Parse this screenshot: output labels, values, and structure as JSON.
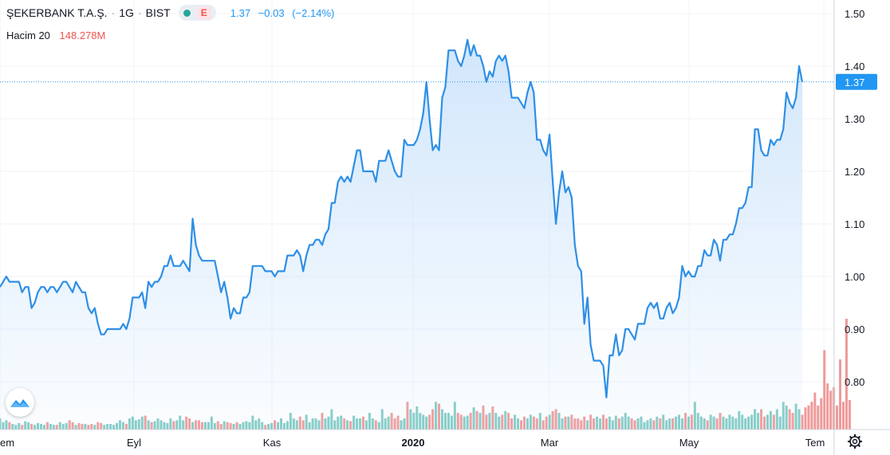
{
  "header": {
    "symbol": "ŞEKERBANK T.A.Ş.",
    "interval": "1G",
    "exchange": "BIST",
    "status_badge": "E",
    "last": "1.37",
    "change": "−0.03",
    "change_pct": "(−2.14%)"
  },
  "volume_legend": {
    "label": "Hacim 20",
    "value": "148.278M"
  },
  "colors": {
    "line": "#2e8fe6",
    "fill": "#cfe5fb",
    "vol_up": "#80cbc4",
    "vol_down": "#ef9a9a",
    "last_price": "#2196f3",
    "grid": "#f0f3fa",
    "text": "#131722"
  },
  "icons": {
    "logo": "tradingview-logo-icon",
    "settings": "gear-icon"
  },
  "chart_data": {
    "type": "line",
    "title": "ŞEKERBANK T.A.Ş. · 1G · BIST",
    "y_axis": {
      "ticks": [
        "1.50",
        "1.40",
        "1.30",
        "1.20",
        "1.10",
        "1.00",
        "0.90",
        "0.80"
      ],
      "ylim": [
        0.72,
        1.52
      ]
    },
    "x_axis": {
      "labels": [
        "em",
        "Eyl",
        "Kas",
        "2020",
        "Mar",
        "May",
        "Tem"
      ]
    },
    "last_price_label": "1.37",
    "last_price": 1.37,
    "grid": true,
    "series": [
      {
        "values": [
          0.98,
          0.99,
          1.0,
          0.99,
          0.99,
          0.99,
          0.99,
          0.97,
          0.98,
          0.98,
          0.94,
          0.95,
          0.97,
          0.98,
          0.98,
          0.97,
          0.98,
          0.98,
          0.97,
          0.98,
          0.99,
          0.99,
          0.98,
          0.97,
          0.99,
          0.98,
          0.97,
          0.97,
          0.94,
          0.93,
          0.94,
          0.91,
          0.89,
          0.89,
          0.9,
          0.9,
          0.9,
          0.9,
          0.9,
          0.91,
          0.9,
          0.92,
          0.96,
          0.96,
          0.96,
          0.97,
          0.94,
          0.99,
          0.98,
          0.99,
          0.99,
          1.0,
          1.02,
          1.02,
          1.04,
          1.02,
          1.02,
          1.02,
          1.03,
          1.02,
          1.01,
          1.11,
          1.06,
          1.04,
          1.03,
          1.03,
          1.03,
          1.03,
          1.03,
          1.0,
          0.97,
          0.99,
          0.96,
          0.92,
          0.94,
          0.93,
          0.93,
          0.96,
          0.96,
          0.97,
          1.02,
          1.02,
          1.02,
          1.02,
          1.01,
          1.01,
          1.01,
          1.0,
          1.01,
          1.01,
          1.01,
          1.04,
          1.04,
          1.04,
          1.05,
          1.04,
          1.01,
          1.04,
          1.06,
          1.06,
          1.07,
          1.07,
          1.06,
          1.08,
          1.09,
          1.14,
          1.14,
          1.18,
          1.19,
          1.18,
          1.19,
          1.18,
          1.21,
          1.24,
          1.24,
          1.2,
          1.2,
          1.2,
          1.2,
          1.18,
          1.22,
          1.22,
          1.22,
          1.24,
          1.22,
          1.2,
          1.19,
          1.19,
          1.26,
          1.25,
          1.25,
          1.25,
          1.26,
          1.28,
          1.31,
          1.37,
          1.3,
          1.24,
          1.25,
          1.24,
          1.34,
          1.36,
          1.43,
          1.43,
          1.43,
          1.41,
          1.4,
          1.42,
          1.45,
          1.42,
          1.44,
          1.42,
          1.42,
          1.4,
          1.37,
          1.39,
          1.38,
          1.41,
          1.42,
          1.41,
          1.42,
          1.39,
          1.34,
          1.34,
          1.34,
          1.33,
          1.32,
          1.35,
          1.37,
          1.35,
          1.26,
          1.26,
          1.24,
          1.23,
          1.27,
          1.18,
          1.1,
          1.16,
          1.2,
          1.16,
          1.17,
          1.15,
          1.06,
          1.02,
          1.01,
          0.91,
          0.96,
          0.87,
          0.84,
          0.84,
          0.84,
          0.83,
          0.77,
          0.85,
          0.85,
          0.89,
          0.85,
          0.86,
          0.9,
          0.9,
          0.89,
          0.88,
          0.91,
          0.91,
          0.91,
          0.94,
          0.95,
          0.94,
          0.95,
          0.92,
          0.92,
          0.94,
          0.95,
          0.93,
          0.94,
          0.96,
          1.02,
          1.0,
          1.01,
          1.0,
          1.0,
          1.02,
          1.02,
          1.05,
          1.04,
          1.04,
          1.07,
          1.06,
          1.03,
          1.07,
          1.07,
          1.08,
          1.08,
          1.1,
          1.13,
          1.13,
          1.14,
          1.17,
          1.17,
          1.28,
          1.28,
          1.24,
          1.23,
          1.23,
          1.26,
          1.25,
          1.26,
          1.26,
          1.28,
          1.35,
          1.33,
          1.32,
          1.34,
          1.4,
          1.37
        ]
      }
    ],
    "volume": {
      "values": [
        12,
        8,
        10,
        8,
        6,
        5,
        7,
        5,
        9,
        8,
        6,
        5,
        7,
        6,
        5,
        8,
        6,
        5,
        5,
        8,
        6,
        7,
        10,
        8,
        5,
        7,
        6,
        6,
        5,
        6,
        5,
        8,
        7,
        5,
        6,
        6,
        5,
        7,
        10,
        8,
        6,
        12,
        14,
        10,
        11,
        14,
        15,
        10,
        8,
        9,
        12,
        10,
        8,
        7,
        12,
        9,
        10,
        15,
        10,
        14,
        12,
        8,
        10,
        10,
        8,
        8,
        8,
        14,
        7,
        9,
        6,
        9,
        8,
        7,
        6,
        8,
        6,
        8,
        9,
        8,
        15,
        10,
        12,
        8,
        5,
        6,
        7,
        10,
        8,
        12,
        7,
        9,
        18,
        12,
        10,
        14,
        10,
        16,
        8,
        12,
        12,
        10,
        18,
        12,
        14,
        22,
        10,
        14,
        15,
        12,
        10,
        9,
        15,
        12,
        12,
        14,
        10,
        18,
        12,
        10,
        8,
        22,
        12,
        14,
        18,
        12,
        15,
        10,
        12,
        30,
        22,
        18,
        25,
        18,
        16,
        14,
        16,
        22,
        30,
        28,
        22,
        18,
        18,
        15,
        30,
        18,
        16,
        14,
        15,
        18,
        24,
        20,
        18,
        26,
        16,
        18,
        25,
        18,
        14,
        16,
        20,
        18,
        12,
        16,
        12,
        10,
        14,
        12,
        16,
        14,
        12,
        18,
        10,
        14,
        16,
        20,
        22,
        18,
        12,
        14,
        14,
        16,
        12,
        12,
        10,
        14,
        10,
        16,
        12,
        14,
        12,
        16,
        12,
        14,
        10,
        15,
        12,
        14,
        18,
        14,
        12,
        10,
        12,
        14,
        8,
        10,
        12,
        10,
        14,
        12,
        16,
        10,
        12,
        12,
        14,
        16,
        12,
        18,
        14,
        16,
        30,
        18,
        14,
        12,
        10,
        16,
        14,
        12,
        18,
        14,
        12,
        16,
        14,
        12,
        20,
        16,
        12,
        14,
        16,
        22,
        18,
        22,
        14,
        16,
        20,
        16,
        22,
        14,
        30,
        26,
        22,
        18,
        28,
        22,
        16,
        24,
        26,
        30,
        40,
        26,
        34,
        86,
        50,
        42,
        46,
        26,
        76,
        30,
        120,
        32
      ],
      "colors_down_up": "mixed"
    }
  }
}
